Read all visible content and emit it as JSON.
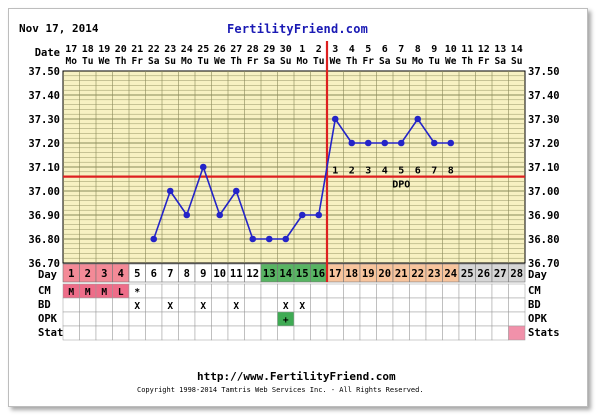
{
  "header": {
    "date": "Nov 17, 2014",
    "brand": "FertilityFriend.com"
  },
  "footer": {
    "url": "http://www.FertilityFriend.com",
    "copyright": "Copyright 1998-2014 Tamtris Web Services Inc. - All Rights Reserved."
  },
  "colors": {
    "background": "#f7f1c2",
    "grid": "#8a8a5a",
    "line": "#2424c8",
    "marker": "#dd2020",
    "brand": "#1a1ab4",
    "phase_menstrual": "#f38a97",
    "phase_fertile": "#58b463",
    "phase_luteal": "#f7c49d",
    "phase_future": "#d6d6d6",
    "menses_cell": "#ee6d89",
    "opk_positive": "#3fab54",
    "stats_cell": "#f191aa"
  },
  "chart_data": {
    "type": "line",
    "row_labels": {
      "date": "Date",
      "day": "Day",
      "cm": "CM",
      "bd": "BD",
      "opk": "OPK",
      "stats": "Stats"
    },
    "dates": [
      "17",
      "18",
      "19",
      "20",
      "21",
      "22",
      "23",
      "24",
      "25",
      "26",
      "27",
      "28",
      "29",
      "30",
      "1",
      "2",
      "3",
      "4",
      "5",
      "6",
      "7",
      "8",
      "9",
      "10",
      "11",
      "12",
      "13",
      "14"
    ],
    "weekdays": [
      "Mo",
      "Tu",
      "We",
      "Th",
      "Fr",
      "Sa",
      "Su",
      "Mo",
      "Tu",
      "We",
      "Th",
      "Fr",
      "Sa",
      "Su",
      "Mo",
      "Tu",
      "We",
      "Th",
      "Fr",
      "Sa",
      "Su",
      "Mo",
      "Tu",
      "We",
      "Th",
      "Fr",
      "Sa",
      "Su"
    ],
    "days": [
      1,
      2,
      3,
      4,
      5,
      6,
      7,
      8,
      9,
      10,
      11,
      12,
      13,
      14,
      15,
      16,
      17,
      18,
      19,
      20,
      21,
      22,
      23,
      24,
      25,
      26,
      27,
      28
    ],
    "phase": [
      "m",
      "m",
      "m",
      "m",
      "n",
      "n",
      "n",
      "n",
      "n",
      "n",
      "n",
      "n",
      "f",
      "f",
      "f",
      "f",
      "l",
      "l",
      "l",
      "l",
      "l",
      "l",
      "l",
      "l",
      "g",
      "g",
      "g",
      "g"
    ],
    "temperatures": [
      null,
      null,
      null,
      null,
      null,
      36.8,
      37.0,
      36.9,
      37.1,
      36.9,
      37.0,
      36.8,
      36.8,
      36.8,
      36.9,
      36.9,
      37.3,
      37.2,
      37.2,
      37.2,
      37.2,
      37.3,
      37.2,
      37.2,
      null,
      null,
      null,
      null
    ],
    "ylim": [
      36.7,
      37.5
    ],
    "yticks": [
      "36.70",
      "36.80",
      "36.90",
      "37.00",
      "37.10",
      "37.20",
      "37.30",
      "37.40",
      "37.50"
    ],
    "coverline": 37.06,
    "ovulation_day": 16,
    "dpo_label": "DPO",
    "dpo_numbers": [
      "1",
      "2",
      "3",
      "4",
      "5",
      "6",
      "7",
      "8"
    ],
    "cm": [
      "M",
      "M",
      "M",
      "L",
      "*",
      "",
      "",
      "",
      "",
      "",
      "",
      "",
      "",
      "",
      "",
      "",
      "",
      "",
      "",
      "",
      "",
      "",
      "",
      "",
      "",
      "",
      "",
      ""
    ],
    "bd": [
      "",
      "",
      "",
      "",
      "X",
      "",
      "X",
      "",
      "X",
      "",
      "X",
      "",
      "",
      "X",
      "X",
      "",
      "",
      "",
      "",
      "",
      "",
      "",
      "",
      "",
      "",
      "",
      "",
      ""
    ],
    "opk": [
      "",
      "",
      "",
      "",
      "",
      "",
      "",
      "",
      "",
      "",
      "",
      "",
      "",
      "+",
      "",
      "",
      "",
      "",
      "",
      "",
      "",
      "",
      "",
      "",
      "",
      "",
      "",
      ""
    ],
    "stats_marked_day": 28
  }
}
